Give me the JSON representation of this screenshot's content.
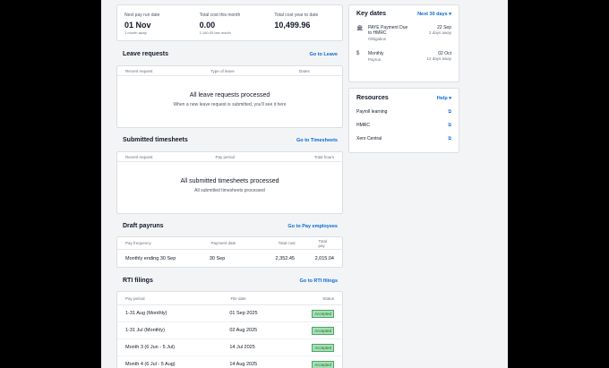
{
  "summary": [
    {
      "label": "Next pay run date",
      "value": "01 Nov",
      "sub": "1 month away"
    },
    {
      "label": "Total cost this month",
      "value": "0.00",
      "sub": "2,180.00 last month"
    },
    {
      "label": "Total cost year to date",
      "value": "10,499.96",
      "sub": ""
    }
  ],
  "leave": {
    "title": "Leave requests",
    "link": "Go to Leave",
    "cols": [
      "Recent request",
      "Type of leave",
      "Dates"
    ],
    "empty_title": "All leave requests processed",
    "empty_sub": "When a new leave request is submitted, you'll see it here"
  },
  "timesheets": {
    "title": "Submitted timesheets",
    "link": "Go to Timesheets",
    "cols": [
      "Recent request",
      "Pay period",
      "Total hours"
    ],
    "empty_title": "All submitted timesheets processed",
    "empty_sub": "All submitted timesheets processed"
  },
  "payruns": {
    "title": "Draft payruns",
    "link": "Go to Pay employees",
    "cols": [
      "Pay frequency",
      "Payment date",
      "Total cost",
      "Total pay"
    ],
    "rows": [
      {
        "freq": "Monthly ending 30 Sep",
        "date": "30 Sep",
        "cost": "2,352.45",
        "pay": "2,015.04"
      }
    ]
  },
  "rti": {
    "title": "RTI filings",
    "link": "Go to RTI filings",
    "cols": [
      "Pay period",
      "File date",
      "Status"
    ],
    "rows": [
      {
        "period": "1-31 Aug (Monthly)",
        "date": "01 Sep 2025",
        "status": "Accepted"
      },
      {
        "period": "1-31 Jul (Monthly)",
        "date": "02 Aug 2025",
        "status": "Accepted"
      },
      {
        "period": "Month 3 (6 Jun - 5 Jul)",
        "date": "14 Jul 2025",
        "status": "Accepted"
      },
      {
        "period": "Month 4 (6 Jul - 5 Aug)",
        "date": "14 Aug 2025",
        "status": "Accepted"
      }
    ]
  },
  "keydates": {
    "title": "Key dates",
    "filter": "Next 30 days",
    "items": [
      {
        "icon": "building-icon",
        "text": "PAYE Payment Due to HMRC",
        "sub": "Obligation",
        "date": "22 Sep",
        "away": "2 days away"
      },
      {
        "icon": "pound-icon",
        "text": "Monthly",
        "sub": "Payrun",
        "date": "02 Oct",
        "away": "12 days away"
      }
    ]
  },
  "resources": {
    "title": "Resources",
    "help": "Help",
    "items": [
      "Payroll learning",
      "HMRC",
      "Xero Central"
    ]
  }
}
